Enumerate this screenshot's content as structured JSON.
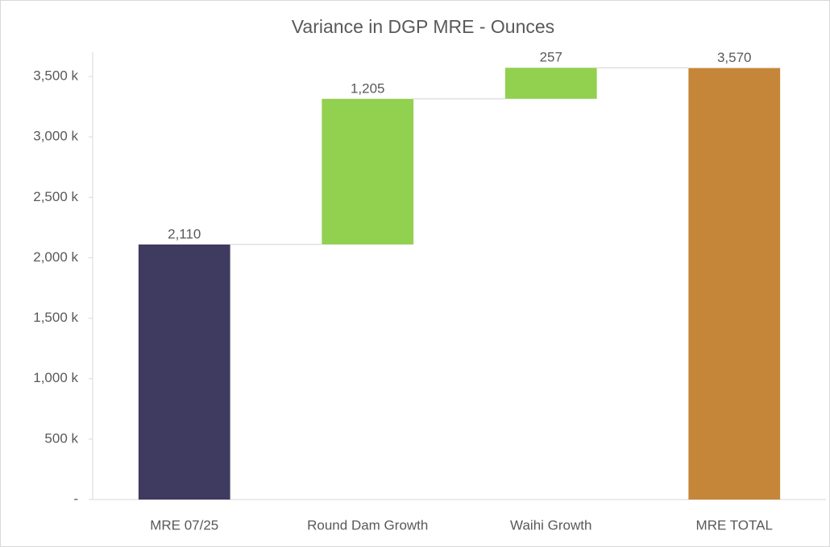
{
  "chart_data": {
    "type": "waterfall",
    "title": "Variance in DGP MRE - Ounces",
    "categories": [
      "MRE 07/25",
      "Round Dam Growth",
      "Waihi Growth",
      "MRE TOTAL"
    ],
    "values": [
      2110,
      1205,
      257,
      3570
    ],
    "value_labels": [
      "2,110",
      "1,205",
      "257",
      "3,570"
    ],
    "measures": [
      "absolute",
      "relative",
      "relative",
      "total"
    ],
    "colors": [
      "#3f3a60",
      "#92d050",
      "#92d050",
      "#c5863a"
    ],
    "ylim": [
      0,
      3700
    ],
    "yticks": [
      {
        "value": 0,
        "label": "-"
      },
      {
        "value": 500,
        "label": "500 k"
      },
      {
        "value": 1000,
        "label": "1,000 k"
      },
      {
        "value": 1500,
        "label": "1,500 k"
      },
      {
        "value": 2000,
        "label": "2,000 k"
      },
      {
        "value": 2500,
        "label": "2,500 k"
      },
      {
        "value": 3000,
        "label": "3,000 k"
      },
      {
        "value": 3500,
        "label": "3,500 k"
      }
    ],
    "grid": false
  }
}
